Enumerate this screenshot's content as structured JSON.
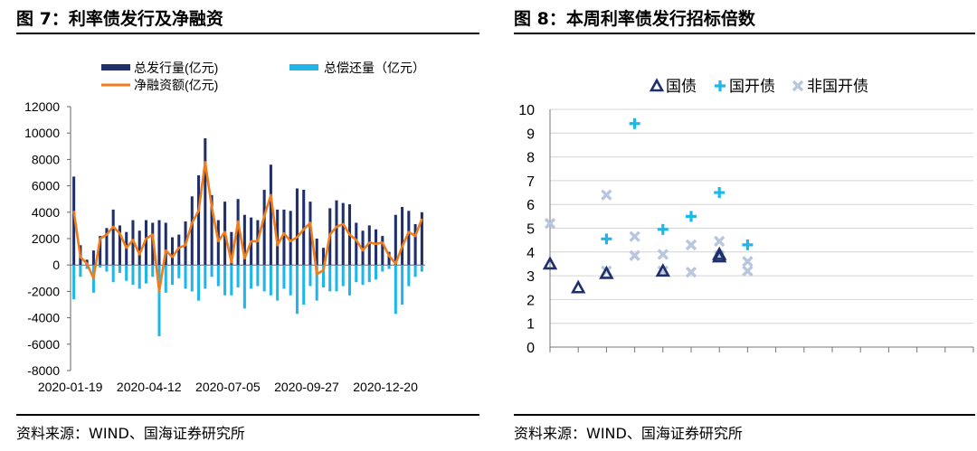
{
  "figures": [
    {
      "title": "图 7：利率债发行及净融资",
      "source": "资料来源：WIND、国海证券研究所"
    },
    {
      "title": "图 8：本周利率债发行招标倍数",
      "source": "资料来源：WIND、国海证券研究所"
    }
  ],
  "colors": {
    "dark_navy": "#1f2f6b",
    "sky_blue": "#1fb7ea",
    "orange": "#f07d1a",
    "light_gray_blue": "#b8c7df"
  },
  "chart_data": [
    {
      "type": "bar",
      "title": "",
      "xlabel": "",
      "ylabel": "",
      "ylim": [
        -8000,
        12000
      ],
      "yticks": [
        -8000,
        -6000,
        -4000,
        -2000,
        0,
        2000,
        4000,
        6000,
        8000,
        10000,
        12000
      ],
      "x_tick_labels": [
        "2020-01-19",
        "2020-04-12",
        "2020-07-05",
        "2020-09-27",
        "2020-12-20"
      ],
      "x_tick_indices": [
        0,
        12,
        24,
        36,
        48
      ],
      "legend_position": "top",
      "series": [
        {
          "name": "总发行量(亿元)",
          "kind": "bar",
          "color": "#1f2f6b",
          "values": [
            6700,
            1500,
            400,
            1100,
            2200,
            2800,
            4200,
            3000,
            2500,
            3400,
            2600,
            3400,
            3200,
            3400,
            3200,
            2100,
            2300,
            3300,
            5200,
            6800,
            9600,
            5300,
            3400,
            4800,
            2500,
            5000,
            3800,
            3600,
            3400,
            5700,
            7600,
            4200,
            4200,
            4100,
            5800,
            5700,
            4800,
            2000,
            1300,
            4300,
            4900,
            4700,
            4600,
            3200,
            2600,
            3000,
            2700,
            2200,
            1000,
            3800,
            4400,
            4100,
            3100,
            4000
          ]
        },
        {
          "name": "总偿还量（亿元）",
          "kind": "bar",
          "color": "#1fb7ea",
          "values": [
            -2600,
            -900,
            -300,
            -2100,
            -200,
            -500,
            -1300,
            -600,
            -1200,
            -1500,
            -1800,
            -1400,
            -900,
            -5400,
            -2100,
            -1500,
            -1000,
            -1800,
            -2000,
            -2700,
            -1800,
            -900,
            -1600,
            -2300,
            -2300,
            -1700,
            -3300,
            -1800,
            -1600,
            -2000,
            -2300,
            -2700,
            -1800,
            -2300,
            -3700,
            -3000,
            -1600,
            -2700,
            -1700,
            -2000,
            -2000,
            -1600,
            -2300,
            -1300,
            -1500,
            -1300,
            -1100,
            -500,
            -300,
            -3700,
            -3000,
            -1600,
            -900,
            -500
          ]
        },
        {
          "name": "净融资额(亿元)",
          "kind": "line",
          "color": "#f07d1a",
          "values": [
            4100,
            600,
            100,
            -1000,
            2000,
            2300,
            2900,
            2400,
            1300,
            1900,
            800,
            2000,
            2300,
            -2000,
            1100,
            600,
            1300,
            1500,
            3200,
            4100,
            7800,
            4400,
            1800,
            2500,
            200,
            3300,
            500,
            1800,
            1800,
            3700,
            5300,
            1500,
            2400,
            1800,
            2100,
            2700,
            3200,
            -700,
            -400,
            2300,
            2900,
            3100,
            2300,
            1900,
            1100,
            1700,
            1600,
            1700,
            700,
            100,
            1400,
            2500,
            2200,
            3500
          ]
        }
      ]
    },
    {
      "type": "scatter",
      "title": "",
      "xlabel": "",
      "ylabel": "",
      "xlim": [
        0,
        15
      ],
      "ylim": [
        0,
        10
      ],
      "yticks": [
        0,
        1,
        2,
        3,
        4,
        5,
        6,
        7,
        8,
        9,
        10
      ],
      "grid": "horizontal",
      "legend_position": "top",
      "series": [
        {
          "name": "国债",
          "marker": "triangle",
          "color": "#1f2f6b",
          "points": [
            [
              0,
              3.5
            ],
            [
              1,
              2.5
            ],
            [
              2,
              3.1
            ],
            [
              4,
              3.2
            ],
            [
              6,
              3.8
            ],
            [
              6,
              3.9
            ]
          ]
        },
        {
          "name": "国开债",
          "marker": "plus",
          "color": "#1fb7ea",
          "points": [
            [
              2,
              4.55
            ],
            [
              3,
              9.4
            ],
            [
              4,
              4.95
            ],
            [
              5,
              5.5
            ],
            [
              6,
              6.5
            ],
            [
              7,
              4.3
            ]
          ]
        },
        {
          "name": "非国开债",
          "marker": "x",
          "color": "#b8c7df",
          "points": [
            [
              0,
              5.2
            ],
            [
              2,
              6.4
            ],
            [
              2,
              3.2
            ],
            [
              3,
              4.65
            ],
            [
              3,
              3.85
            ],
            [
              4,
              3.9
            ],
            [
              4,
              3.2
            ],
            [
              5,
              4.3
            ],
            [
              5,
              3.15
            ],
            [
              6,
              4.45
            ],
            [
              6,
              3.85
            ],
            [
              7,
              3.6
            ],
            [
              7,
              3.2
            ]
          ]
        }
      ]
    }
  ]
}
